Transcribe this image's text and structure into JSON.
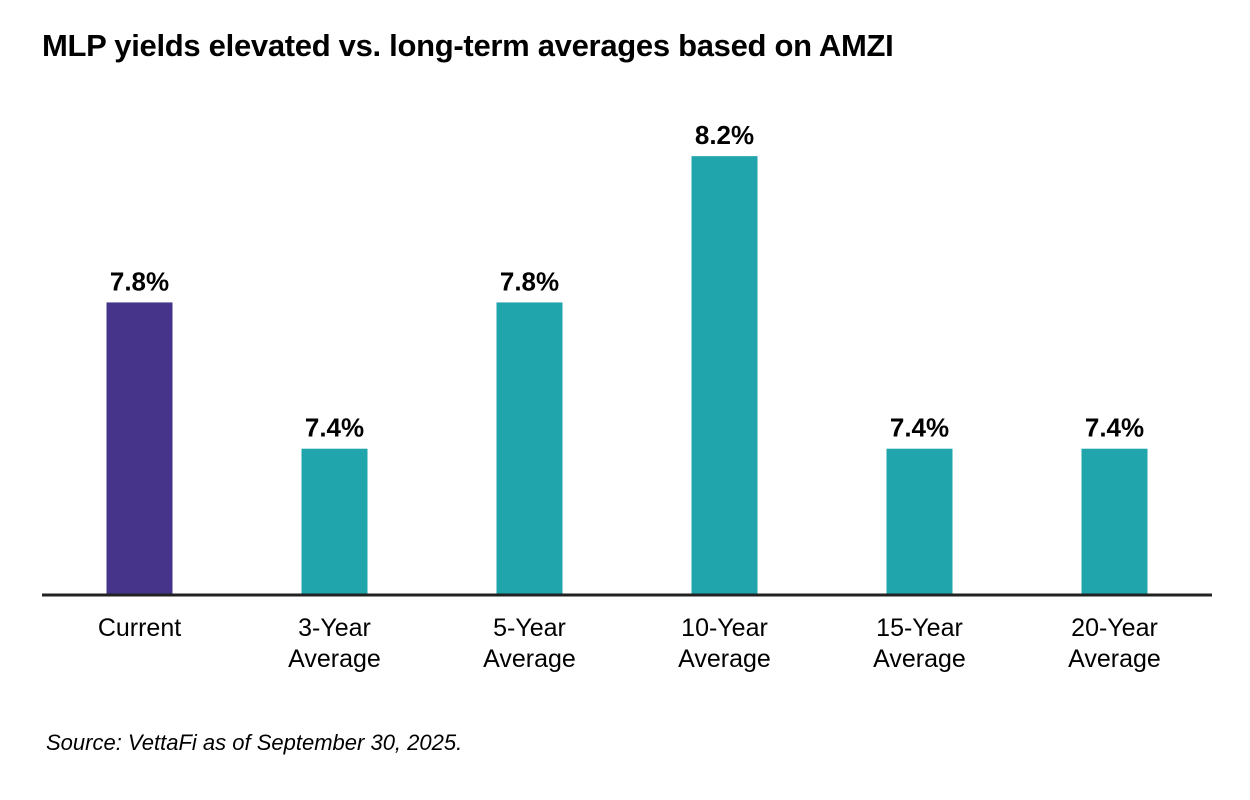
{
  "chart_data": {
    "type": "bar",
    "title": "MLP yields elevated vs. long-term averages based on AMZI",
    "categories": [
      "Current",
      "3-Year Average",
      "5-Year Average",
      "10-Year Average",
      "15-Year Average",
      "20-Year Average"
    ],
    "values": [
      7.8,
      7.4,
      7.8,
      8.2,
      7.4,
      7.4
    ],
    "value_labels": [
      "7.8%",
      "7.4%",
      "7.8%",
      "8.2%",
      "7.4%",
      "7.4%"
    ],
    "colors": [
      "#45348a",
      "#1fa5ab",
      "#1fa5ab",
      "#1fa5ab",
      "#1fa5ab",
      "#1fa5ab"
    ],
    "ylim": [
      7.0,
      8.4
    ],
    "source": "Source: VettaFi as of September 30, 2025."
  }
}
